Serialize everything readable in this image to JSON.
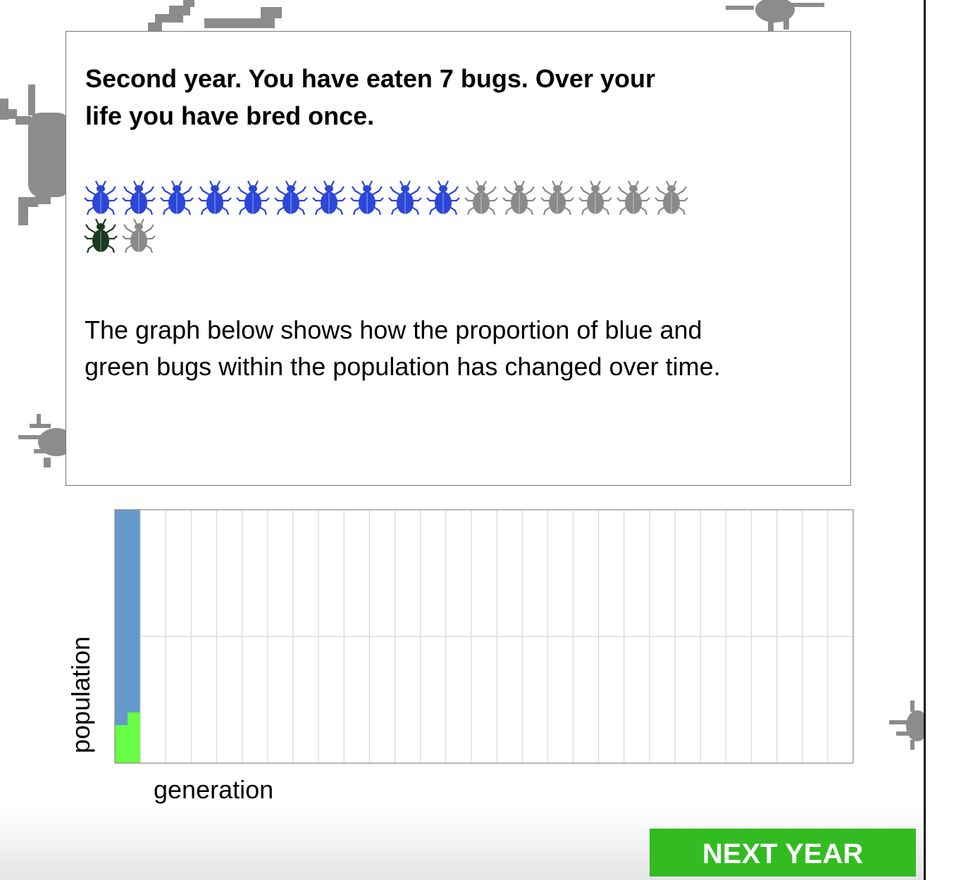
{
  "message": {
    "headline": "Second year. You have eaten 7 bugs. Over your life you have bred once.",
    "description": "The graph below shows how the proportion of blue and green bugs within the population has changed over time."
  },
  "bugs": [
    "blue",
    "blue",
    "blue",
    "blue",
    "blue",
    "blue",
    "blue",
    "blue",
    "blue",
    "blue",
    "gray",
    "gray",
    "gray",
    "gray",
    "gray",
    "gray",
    "green",
    "gray"
  ],
  "colors": {
    "blue_bug": "#2b46d8",
    "green_bug": "#1b3a1f",
    "gray_bug": "#8a8a8a",
    "bg_bug": "#8c8c8c",
    "chart_blue": "#6699cc",
    "chart_green": "#66ff44",
    "button": "#33bb22"
  },
  "chart_data": {
    "type": "area",
    "xlabel": "generation",
    "ylabel": "population",
    "generations_total": 29,
    "grid": true,
    "series": [
      {
        "color": "green",
        "values": [
          0.15,
          0.2
        ]
      },
      {
        "color": "blue",
        "values": [
          0.85,
          0.8
        ]
      }
    ],
    "ylim": [
      0,
      1
    ]
  },
  "next_button": {
    "label": "NEXT YEAR"
  }
}
